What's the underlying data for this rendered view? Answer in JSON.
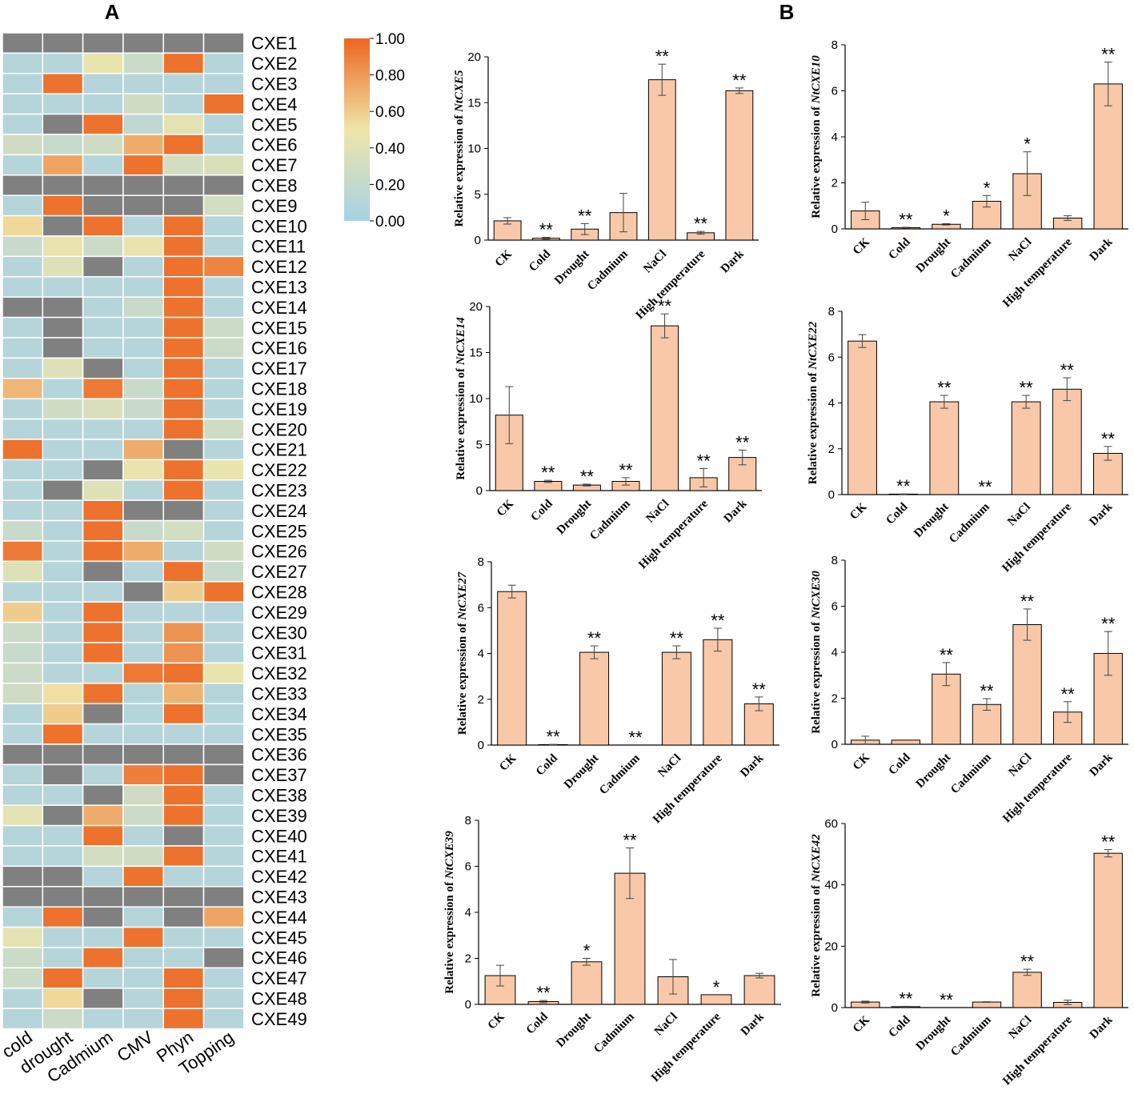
{
  "panels": {
    "A": "A",
    "B": "B"
  },
  "colors": {
    "bar_fill": "#f8c8a8",
    "bar_stroke": "#000000",
    "missing": "#808080",
    "scale": [
      "#a6d1e6",
      "#f0e5a8",
      "#ec6520"
    ]
  },
  "heatmap": {
    "columns": [
      "cold",
      "drought",
      "Cadmium",
      "CMV",
      "Phyn",
      "Topping"
    ],
    "legend": {
      "ticks": [
        "1.00",
        "0.80",
        "0.60",
        "0.40",
        "0.20",
        "0.00"
      ],
      "min": 0,
      "max": 1
    },
    "rows": [
      {
        "gene": "CXE1",
        "v": [
          null,
          null,
          null,
          null,
          null,
          null
        ]
      },
      {
        "gene": "CXE2",
        "v": [
          0.1,
          0.1,
          0.45,
          0.25,
          0.95,
          0.1
        ]
      },
      {
        "gene": "CXE3",
        "v": [
          0.1,
          0.95,
          0.1,
          0.1,
          0.1,
          0.1
        ]
      },
      {
        "gene": "CXE4",
        "v": [
          0.1,
          0.1,
          0.1,
          0.28,
          0.1,
          0.95
        ]
      },
      {
        "gene": "CXE5",
        "v": [
          0.1,
          null,
          0.95,
          0.18,
          0.42,
          0.1
        ]
      },
      {
        "gene": "CXE6",
        "v": [
          0.28,
          0.22,
          0.28,
          0.72,
          0.95,
          0.1
        ]
      },
      {
        "gene": "CXE7",
        "v": [
          0.1,
          0.75,
          0.1,
          0.95,
          0.3,
          0.35
        ]
      },
      {
        "gene": "CXE8",
        "v": [
          null,
          null,
          null,
          null,
          null,
          null
        ]
      },
      {
        "gene": "CXE9",
        "v": [
          0.1,
          0.95,
          null,
          null,
          null,
          0.3
        ]
      },
      {
        "gene": "CXE10",
        "v": [
          0.55,
          null,
          0.95,
          0.1,
          0.95,
          0.1
        ]
      },
      {
        "gene": "CXE11",
        "v": [
          0.22,
          0.45,
          0.25,
          0.45,
          0.95,
          0.1
        ]
      },
      {
        "gene": "CXE12",
        "v": [
          0.1,
          0.38,
          null,
          0.1,
          0.95,
          0.88
        ]
      },
      {
        "gene": "CXE13",
        "v": [
          0.1,
          0.1,
          0.1,
          0.1,
          0.95,
          0.1
        ]
      },
      {
        "gene": "CXE14",
        "v": [
          null,
          null,
          0.1,
          0.22,
          0.95,
          0.1
        ]
      },
      {
        "gene": "CXE15",
        "v": [
          0.1,
          null,
          0.1,
          0.1,
          0.95,
          0.25
        ]
      },
      {
        "gene": "CXE16",
        "v": [
          0.1,
          null,
          0.1,
          0.1,
          0.95,
          0.25
        ]
      },
      {
        "gene": "CXE17",
        "v": [
          0.1,
          0.38,
          null,
          0.1,
          0.95,
          0.1
        ]
      },
      {
        "gene": "CXE18",
        "v": [
          0.68,
          0.1,
          0.92,
          0.22,
          0.95,
          0.1
        ]
      },
      {
        "gene": "CXE19",
        "v": [
          0.1,
          0.28,
          0.35,
          0.22,
          0.95,
          0.1
        ]
      },
      {
        "gene": "CXE20",
        "v": [
          0.1,
          0.1,
          0.1,
          0.1,
          0.95,
          0.28
        ]
      },
      {
        "gene": "CXE21",
        "v": [
          0.95,
          0.1,
          0.1,
          0.72,
          null,
          0.1
        ]
      },
      {
        "gene": "CXE22",
        "v": [
          0.1,
          0.1,
          null,
          0.45,
          0.95,
          0.45
        ]
      },
      {
        "gene": "CXE23",
        "v": [
          0.1,
          null,
          0.38,
          0.1,
          0.95,
          0.1
        ]
      },
      {
        "gene": "CXE24",
        "v": [
          0.1,
          0.1,
          0.95,
          null,
          null,
          0.1
        ]
      },
      {
        "gene": "CXE25",
        "v": [
          0.22,
          0.1,
          0.95,
          0.22,
          0.3,
          0.1
        ]
      },
      {
        "gene": "CXE26",
        "v": [
          0.92,
          0.1,
          0.95,
          0.72,
          0.1,
          0.28
        ]
      },
      {
        "gene": "CXE27",
        "v": [
          0.38,
          0.1,
          null,
          0.1,
          0.95,
          0.22
        ]
      },
      {
        "gene": "CXE28",
        "v": [
          0.1,
          0.1,
          0.1,
          null,
          0.6,
          0.95
        ]
      },
      {
        "gene": "CXE29",
        "v": [
          0.6,
          0.1,
          0.95,
          0.1,
          0.1,
          0.1
        ]
      },
      {
        "gene": "CXE30",
        "v": [
          0.25,
          0.1,
          0.95,
          0.1,
          0.82,
          0.1
        ]
      },
      {
        "gene": "CXE31",
        "v": [
          0.22,
          0.1,
          0.95,
          0.1,
          0.82,
          0.1
        ]
      },
      {
        "gene": "CXE32",
        "v": [
          0.25,
          0.1,
          0.1,
          0.92,
          0.95,
          0.45
        ]
      },
      {
        "gene": "CXE33",
        "v": [
          0.28,
          0.52,
          0.95,
          0.1,
          0.7,
          0.1
        ]
      },
      {
        "gene": "CXE34",
        "v": [
          0.1,
          0.6,
          null,
          0.1,
          0.95,
          0.1
        ]
      },
      {
        "gene": "CXE35",
        "v": [
          0.1,
          0.95,
          0.1,
          0.1,
          0.1,
          0.1
        ]
      },
      {
        "gene": "CXE36",
        "v": [
          null,
          null,
          null,
          null,
          null,
          null
        ]
      },
      {
        "gene": "CXE37",
        "v": [
          0.1,
          null,
          0.1,
          0.9,
          0.95,
          null
        ]
      },
      {
        "gene": "CXE38",
        "v": [
          0.1,
          0.1,
          null,
          0.28,
          0.95,
          0.1
        ]
      },
      {
        "gene": "CXE39",
        "v": [
          0.42,
          null,
          0.72,
          0.25,
          0.95,
          0.1
        ]
      },
      {
        "gene": "CXE40",
        "v": [
          0.1,
          0.1,
          0.95,
          0.1,
          null,
          0.1
        ]
      },
      {
        "gene": "CXE41",
        "v": [
          0.1,
          0.1,
          0.3,
          0.28,
          0.95,
          0.1
        ]
      },
      {
        "gene": "CXE42",
        "v": [
          null,
          null,
          0.1,
          0.95,
          0.1,
          0.1
        ]
      },
      {
        "gene": "CXE43",
        "v": [
          null,
          null,
          null,
          null,
          null,
          null
        ]
      },
      {
        "gene": "CXE44",
        "v": [
          0.1,
          0.95,
          null,
          0.1,
          null,
          0.75
        ]
      },
      {
        "gene": "CXE45",
        "v": [
          0.42,
          0.1,
          0.1,
          0.95,
          0.1,
          0.1
        ]
      },
      {
        "gene": "CXE46",
        "v": [
          0.25,
          0.1,
          0.95,
          0.1,
          0.1,
          null
        ]
      },
      {
        "gene": "CXE47",
        "v": [
          0.25,
          0.95,
          0.1,
          0.1,
          0.95,
          0.1
        ]
      },
      {
        "gene": "CXE48",
        "v": [
          0.1,
          0.55,
          null,
          0.1,
          0.95,
          0.1
        ]
      },
      {
        "gene": "CXE49",
        "v": [
          0.1,
          0.25,
          0.1,
          0.1,
          0.95,
          0.1
        ]
      }
    ]
  },
  "chart_data": [
    {
      "type": "heatmap",
      "title": "A",
      "columns": [
        "cold",
        "drought",
        "Cadmium",
        "CMV",
        "Phyn",
        "Topping"
      ],
      "note": "Relative expression, color scale 0.00 to 1.00; gray cells indicate missing data. Values listed under heatmap.rows."
    },
    {
      "type": "bar",
      "gene": "NtCXE5",
      "ylabel_prefix": "Relative expression of ",
      "categories": [
        "CK",
        "Cold",
        "Drought",
        "Cadmium",
        "NaCl",
        "High temperature",
        "Dark"
      ],
      "values": [
        2.1,
        0.2,
        1.2,
        3.0,
        17.5,
        0.8,
        16.3
      ],
      "errors": [
        0.35,
        0.1,
        0.6,
        2.1,
        1.7,
        0.15,
        0.3
      ],
      "sig": [
        "",
        "**",
        "**",
        "",
        "**",
        "**",
        "**"
      ],
      "ylim": [
        0,
        20
      ],
      "yticks": [
        0,
        5,
        10,
        15,
        20
      ]
    },
    {
      "type": "bar",
      "gene": "NtCXE10",
      "ylabel_prefix": "Relative expression of ",
      "categories": [
        "CK",
        "Cold",
        "Drought",
        "Cadmium",
        "NaCl",
        "High temperature",
        "Dark"
      ],
      "values": [
        0.78,
        0.05,
        0.2,
        1.2,
        2.4,
        0.47,
        6.3
      ],
      "errors": [
        0.38,
        0.02,
        0.03,
        0.25,
        0.95,
        0.1,
        0.95
      ],
      "sig": [
        "",
        "**",
        "*",
        "*",
        "*",
        "",
        "**"
      ],
      "ylim": [
        0,
        8
      ],
      "yticks": [
        0,
        2,
        4,
        6,
        8
      ]
    },
    {
      "type": "bar",
      "gene": "NtCXE14",
      "ylabel_prefix": "Relative expression of ",
      "categories": [
        "CK",
        "Cold",
        "Drought",
        "Cadmium",
        "NaCl",
        "High temperature",
        "Dark"
      ],
      "values": [
        8.2,
        1.0,
        0.6,
        1.0,
        17.9,
        1.4,
        3.6
      ],
      "errors": [
        3.1,
        0.12,
        0.1,
        0.4,
        1.3,
        1.0,
        0.8
      ],
      "sig": [
        "",
        "**",
        "**",
        "**",
        "**",
        "**",
        "**"
      ],
      "ylim": [
        0,
        20
      ],
      "yticks": [
        0,
        5,
        10,
        15,
        20
      ]
    },
    {
      "type": "bar",
      "gene": "NtCXE22",
      "ylabel_prefix": "Relative expression of ",
      "categories": [
        "CK",
        "Cold",
        "Drought",
        "Cadmium",
        "NaCl",
        "High temperature",
        "Dark"
      ],
      "values": [
        6.7,
        0.02,
        4.05,
        0.0,
        4.05,
        4.6,
        1.8
      ],
      "errors": [
        0.28,
        0.01,
        0.28,
        0.0,
        0.28,
        0.5,
        0.3
      ],
      "sig": [
        "",
        "**",
        "**",
        "**",
        "**",
        "**",
        "**"
      ],
      "ylim": [
        0,
        8
      ],
      "yticks": [
        0,
        2,
        4,
        6,
        8
      ]
    },
    {
      "type": "bar",
      "gene": "NtCXE27",
      "ylabel_prefix": "Relative expression of ",
      "categories": [
        "CK",
        "Cold",
        "Drought",
        "Cadmium",
        "NaCl",
        "High temperature",
        "Dark"
      ],
      "values": [
        6.7,
        0.02,
        4.05,
        0.0,
        4.05,
        4.6,
        1.8
      ],
      "errors": [
        0.28,
        0.01,
        0.28,
        0.0,
        0.28,
        0.5,
        0.3
      ],
      "sig": [
        "",
        "**",
        "**",
        "**",
        "**",
        "**",
        "**"
      ],
      "ylim": [
        0,
        8
      ],
      "yticks": [
        0,
        2,
        4,
        6,
        8
      ]
    },
    {
      "type": "bar",
      "gene": "NtCXE30",
      "ylabel_prefix": "Relative expression of ",
      "categories": [
        "CK",
        "Cold",
        "Drought",
        "Cadmium",
        "NaCl",
        "High temperature",
        "Dark"
      ],
      "values": [
        0.18,
        0.18,
        3.05,
        1.73,
        5.2,
        1.4,
        3.95
      ],
      "errors": [
        0.17,
        0.0,
        0.5,
        0.25,
        0.68,
        0.45,
        0.95
      ],
      "sig": [
        "",
        "",
        "**",
        "**",
        "**",
        "**",
        "**"
      ],
      "ylim": [
        0,
        8
      ],
      "yticks": [
        0,
        2,
        4,
        6,
        8
      ]
    },
    {
      "type": "bar",
      "gene": "NtCXE39",
      "ylabel_prefix": "Relative expression of ",
      "categories": [
        "CK",
        "Cold",
        "Drought",
        "Cadmium",
        "NaCl",
        "High temperature",
        "Dark"
      ],
      "values": [
        1.25,
        0.12,
        1.85,
        5.7,
        1.2,
        0.42,
        1.25
      ],
      "errors": [
        0.45,
        0.05,
        0.15,
        1.1,
        0.75,
        0.0,
        0.1
      ],
      "sig": [
        "",
        "**",
        "*",
        "**",
        "",
        "*",
        ""
      ],
      "ylim": [
        0,
        8
      ],
      "yticks": [
        0,
        2,
        4,
        6,
        8
      ]
    },
    {
      "type": "bar",
      "gene": "NtCXE42",
      "ylabel_prefix": "Relative expression of ",
      "categories": [
        "CK",
        "Cold",
        "Drought",
        "Cadmium",
        "NaCl",
        "High temperature",
        "Dark"
      ],
      "values": [
        1.8,
        0.3,
        0.0,
        1.8,
        11.5,
        1.7,
        50.3
      ],
      "errors": [
        0.3,
        0.1,
        0.0,
        0.1,
        1.0,
        0.7,
        1.2
      ],
      "sig": [
        "",
        "**",
        "**",
        "",
        "**",
        "",
        "**"
      ],
      "ylim": [
        0,
        60
      ],
      "yticks": [
        0,
        20,
        40,
        60
      ]
    }
  ]
}
